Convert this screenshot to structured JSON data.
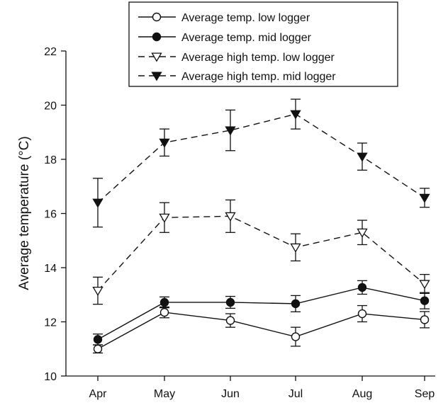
{
  "chart_data": {
    "type": "line",
    "title": "",
    "xlabel": "",
    "ylabel": "Average temperature (°C)",
    "categories": [
      "Apr",
      "May",
      "Jun",
      "Jul",
      "Aug",
      "Sep"
    ],
    "ylim": [
      10,
      22
    ],
    "yticks": [
      "10",
      "12",
      "14",
      "16",
      "18",
      "20",
      "22"
    ],
    "grid": false,
    "legend_position": "top",
    "series": [
      {
        "name": "Average temp. low logger",
        "values": [
          11.0,
          12.35,
          12.05,
          11.45,
          12.3,
          12.08
        ],
        "errors": [
          0.15,
          0.2,
          0.25,
          0.35,
          0.3,
          0.3
        ],
        "marker": "open-circle",
        "line": "solid"
      },
      {
        "name": "Average temp. mid logger",
        "values": [
          11.35,
          12.72,
          12.72,
          12.67,
          13.27,
          12.78
        ],
        "errors": [
          0.2,
          0.2,
          0.22,
          0.3,
          0.25,
          0.3
        ],
        "marker": "filled-circle",
        "line": "solid"
      },
      {
        "name": "Average high temp. low logger",
        "values": [
          13.15,
          15.85,
          15.9,
          14.75,
          15.3,
          13.4
        ],
        "errors": [
          0.5,
          0.55,
          0.6,
          0.5,
          0.45,
          0.35
        ],
        "marker": "open-triangle-down",
        "line": "dashed"
      },
      {
        "name": "Average high temp. mid logger",
        "values": [
          16.4,
          18.62,
          19.07,
          19.67,
          18.1,
          16.58
        ],
        "errors": [
          0.9,
          0.5,
          0.75,
          0.55,
          0.5,
          0.35
        ],
        "marker": "filled-triangle-down",
        "line": "dashed"
      }
    ]
  }
}
